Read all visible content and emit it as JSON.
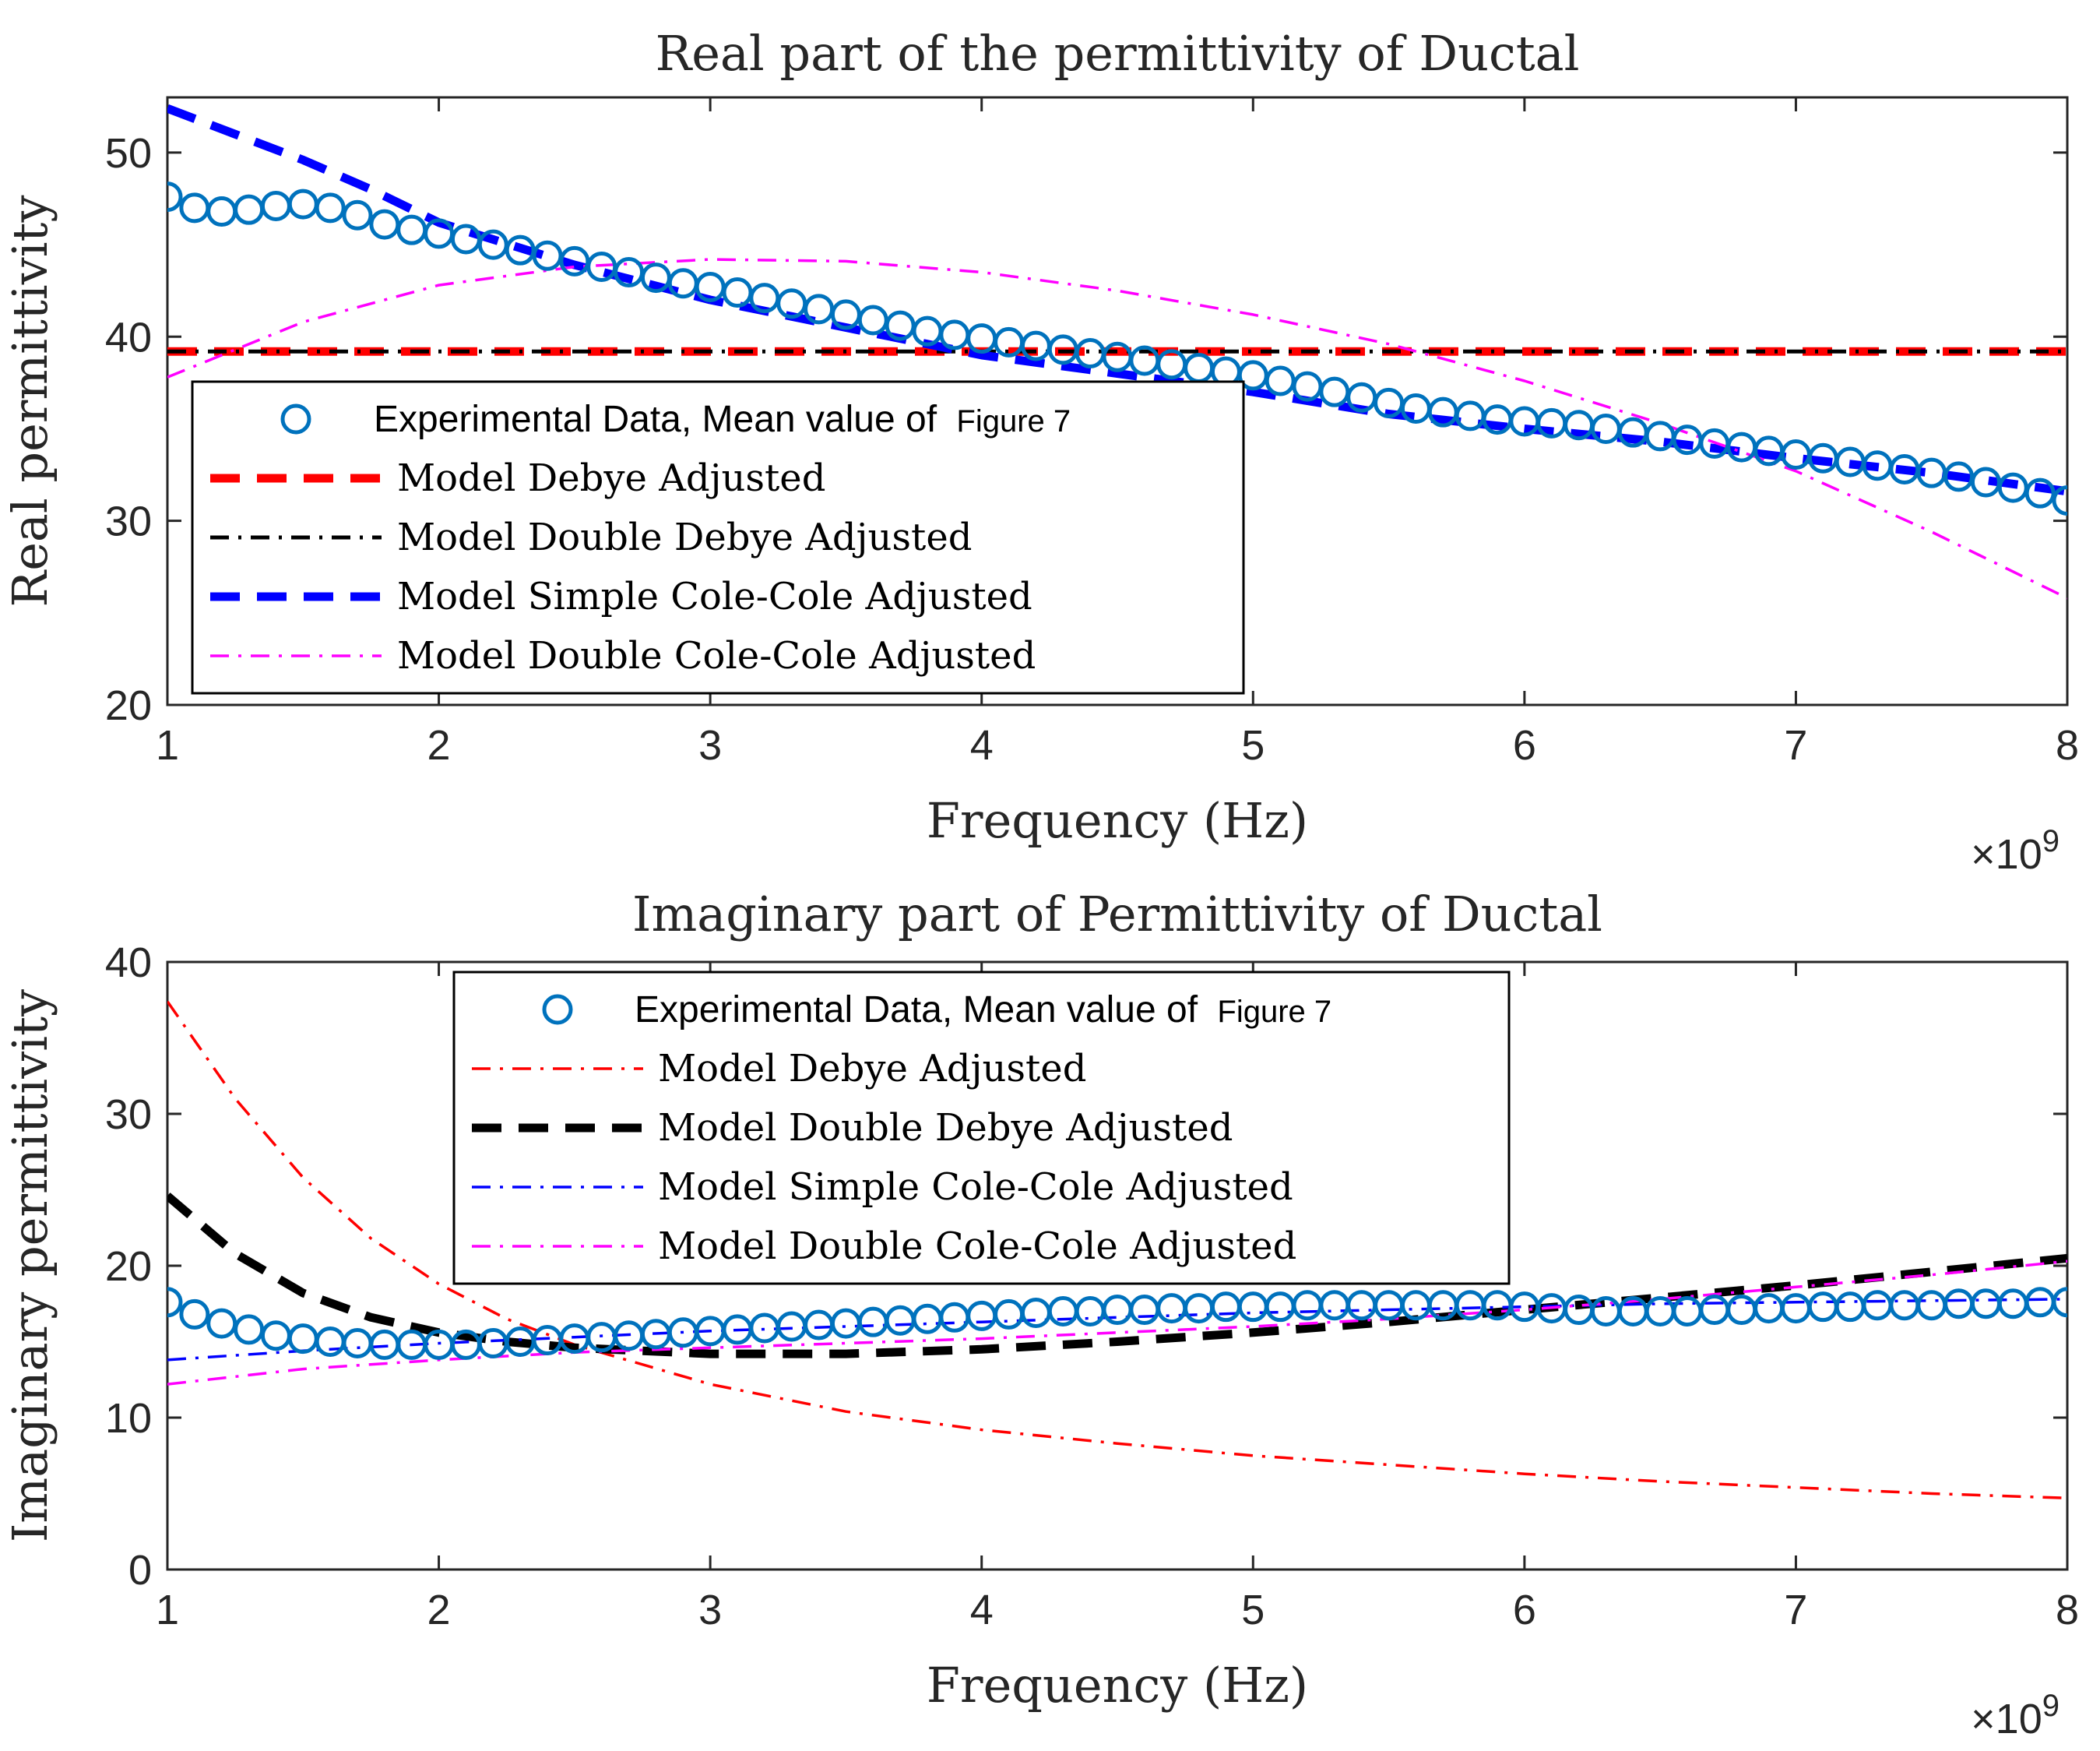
{
  "chart_data": [
    {
      "type": "line",
      "title": "Real part of the permittivity of Ductal",
      "xlabel": "Frequency (Hz)",
      "ylabel": "Real permittivity",
      "x_exponent_label": "×10",
      "x_exponent_power": "9",
      "xlim": [
        1,
        8
      ],
      "ylim": [
        20,
        53
      ],
      "xticks": [
        "1",
        "2",
        "3",
        "4",
        "5",
        "6",
        "7",
        "8"
      ],
      "yticks": [
        "20",
        "30",
        "40",
        "50"
      ],
      "legend_position": "lower-left",
      "series": [
        {
          "name": "Experimental Data, Mean value of",
          "name_suffix": "Figure 7",
          "style": "markers-circle",
          "color": "#0072BD",
          "x": [
            1.0,
            1.1,
            1.2,
            1.3,
            1.4,
            1.5,
            1.6,
            1.7,
            1.8,
            1.9,
            2.0,
            2.1,
            2.2,
            2.3,
            2.4,
            2.5,
            2.6,
            2.7,
            2.8,
            2.9,
            3.0,
            3.1,
            3.2,
            3.3,
            3.4,
            3.5,
            3.6,
            3.7,
            3.8,
            3.9,
            4.0,
            4.1,
            4.2,
            4.3,
            4.4,
            4.5,
            4.6,
            4.7,
            4.8,
            4.9,
            5.0,
            5.1,
            5.2,
            5.3,
            5.4,
            5.5,
            5.6,
            5.7,
            5.8,
            5.9,
            6.0,
            6.1,
            6.2,
            6.3,
            6.4,
            6.5,
            6.6,
            6.7,
            6.8,
            6.9,
            7.0,
            7.1,
            7.2,
            7.3,
            7.4,
            7.5,
            7.6,
            7.7,
            7.8,
            7.9,
            8.0
          ],
          "y": [
            47.6,
            47.0,
            46.8,
            46.9,
            47.1,
            47.2,
            47.0,
            46.6,
            46.1,
            45.8,
            45.6,
            45.3,
            45.0,
            44.7,
            44.4,
            44.1,
            43.8,
            43.5,
            43.2,
            42.9,
            42.7,
            42.4,
            42.1,
            41.8,
            41.5,
            41.2,
            40.9,
            40.6,
            40.3,
            40.1,
            39.9,
            39.7,
            39.5,
            39.3,
            39.1,
            38.9,
            38.7,
            38.5,
            38.3,
            38.1,
            37.9,
            37.6,
            37.3,
            37.0,
            36.7,
            36.4,
            36.1,
            35.9,
            35.7,
            35.5,
            35.4,
            35.3,
            35.2,
            35.0,
            34.8,
            34.6,
            34.4,
            34.2,
            34.0,
            33.8,
            33.6,
            33.4,
            33.2,
            33.0,
            32.8,
            32.6,
            32.4,
            32.1,
            31.8,
            31.5,
            31.1
          ]
        },
        {
          "name": "Model Debye Adjusted",
          "style": "dashed-thick",
          "color": "#FF0000",
          "x": [
            1,
            8
          ],
          "y": [
            39.2,
            39.2
          ]
        },
        {
          "name": "Model Double Debye Adjusted",
          "style": "dashdot",
          "color": "#000000",
          "x": [
            1,
            8
          ],
          "y": [
            39.2,
            39.2
          ]
        },
        {
          "name": "Model Simple Cole-Cole Adjusted",
          "style": "dashed-thick",
          "color": "#0000FF",
          "x": [
            1.0,
            1.25,
            1.5,
            1.75,
            2.0,
            2.5,
            3.0,
            3.5,
            4.0,
            4.5,
            5.0,
            5.5,
            6.0,
            6.5,
            7.0,
            7.5,
            8.0
          ],
          "y": [
            52.4,
            51.0,
            49.6,
            48.0,
            46.2,
            43.9,
            42.0,
            40.5,
            39.0,
            38.0,
            37.0,
            35.8,
            35.0,
            34.3,
            33.4,
            32.6,
            31.6
          ]
        },
        {
          "name": "Model Double Cole-Cole Adjusted",
          "style": "dashdot-thin",
          "color": "#FF00FF",
          "x": [
            1.0,
            1.5,
            2.0,
            2.5,
            3.0,
            3.5,
            4.0,
            4.5,
            5.0,
            5.5,
            6.0,
            6.5,
            7.0,
            7.5,
            8.0
          ],
          "y": [
            37.8,
            40.8,
            42.8,
            43.8,
            44.2,
            44.1,
            43.5,
            42.5,
            41.2,
            39.6,
            37.6,
            35.3,
            32.7,
            29.4,
            25.8
          ]
        }
      ]
    },
    {
      "type": "line",
      "title": "Imaginary part of Permittivity of Ductal",
      "xlabel": "Frequency (Hz)",
      "ylabel": "Imaginary permittivity",
      "x_exponent_label": "×10",
      "x_exponent_power": "9",
      "xlim": [
        1,
        8
      ],
      "ylim": [
        0,
        40
      ],
      "xticks": [
        "1",
        "2",
        "3",
        "4",
        "5",
        "6",
        "7",
        "8"
      ],
      "yticks": [
        "0",
        "10",
        "20",
        "30",
        "40"
      ],
      "legend_position": "upper-center",
      "series": [
        {
          "name": "Experimental Data, Mean value of",
          "name_suffix": "Figure 7",
          "style": "markers-circle",
          "color": "#0072BD",
          "x": [
            1.0,
            1.1,
            1.2,
            1.3,
            1.4,
            1.5,
            1.6,
            1.7,
            1.8,
            1.9,
            2.0,
            2.1,
            2.2,
            2.3,
            2.4,
            2.5,
            2.6,
            2.7,
            2.8,
            2.9,
            3.0,
            3.1,
            3.2,
            3.3,
            3.4,
            3.5,
            3.6,
            3.7,
            3.8,
            3.9,
            4.0,
            4.1,
            4.2,
            4.3,
            4.4,
            4.5,
            4.6,
            4.7,
            4.8,
            4.9,
            5.0,
            5.1,
            5.2,
            5.3,
            5.4,
            5.5,
            5.6,
            5.7,
            5.8,
            5.9,
            6.0,
            6.1,
            6.2,
            6.3,
            6.4,
            6.5,
            6.6,
            6.7,
            6.8,
            6.9,
            7.0,
            7.1,
            7.2,
            7.3,
            7.4,
            7.5,
            7.6,
            7.7,
            7.8,
            7.9,
            8.0
          ],
          "y": [
            17.6,
            16.8,
            16.2,
            15.8,
            15.4,
            15.2,
            15.0,
            14.9,
            14.8,
            14.8,
            14.8,
            14.8,
            14.9,
            15.0,
            15.1,
            15.2,
            15.3,
            15.4,
            15.5,
            15.6,
            15.7,
            15.8,
            15.9,
            16.0,
            16.1,
            16.2,
            16.3,
            16.4,
            16.5,
            16.6,
            16.7,
            16.8,
            16.9,
            17.0,
            17.0,
            17.1,
            17.1,
            17.2,
            17.2,
            17.3,
            17.3,
            17.3,
            17.4,
            17.4,
            17.4,
            17.4,
            17.4,
            17.4,
            17.4,
            17.4,
            17.3,
            17.2,
            17.1,
            17.0,
            17.0,
            17.0,
            17.0,
            17.1,
            17.1,
            17.2,
            17.2,
            17.3,
            17.3,
            17.4,
            17.4,
            17.4,
            17.5,
            17.5,
            17.5,
            17.6,
            17.6
          ]
        },
        {
          "name": "Model Debye Adjusted",
          "style": "dashdot-thin",
          "color": "#FF0000",
          "x": [
            1.0,
            1.25,
            1.5,
            1.75,
            2.0,
            2.25,
            2.5,
            3.0,
            3.5,
            4.0,
            4.5,
            5.0,
            5.5,
            6.0,
            6.5,
            7.0,
            7.5,
            8.0
          ],
          "y": [
            37.4,
            31.0,
            25.8,
            21.8,
            18.8,
            16.5,
            14.8,
            12.2,
            10.4,
            9.2,
            8.3,
            7.5,
            6.9,
            6.3,
            5.8,
            5.4,
            5.0,
            4.7
          ]
        },
        {
          "name": "Model Double Debye Adjusted",
          "style": "dashed-thick",
          "color": "#000000",
          "x": [
            1.0,
            1.25,
            1.5,
            1.75,
            2.0,
            2.25,
            2.5,
            3.0,
            3.5,
            4.0,
            4.5,
            5.0,
            5.5,
            6.0,
            6.5,
            7.0,
            7.5,
            8.0
          ],
          "y": [
            24.6,
            20.8,
            18.2,
            16.6,
            15.6,
            15.0,
            14.6,
            14.2,
            14.2,
            14.5,
            15.0,
            15.6,
            16.3,
            17.1,
            17.9,
            18.7,
            19.6,
            20.5
          ]
        },
        {
          "name": "Model Simple Cole-Cole Adjusted",
          "style": "dashdot-thin",
          "color": "#0000FF",
          "x": [
            1.0,
            1.5,
            2.0,
            2.5,
            3.0,
            3.5,
            4.0,
            4.5,
            5.0,
            5.5,
            6.0,
            6.5,
            7.0,
            7.5,
            8.0
          ],
          "y": [
            13.8,
            14.4,
            14.9,
            15.3,
            15.7,
            16.0,
            16.3,
            16.6,
            16.9,
            17.1,
            17.3,
            17.5,
            17.6,
            17.7,
            17.8
          ]
        },
        {
          "name": "Model Double Cole-Cole Adjusted",
          "style": "dashdot-thin",
          "color": "#FF00FF",
          "x": [
            1.0,
            1.5,
            2.0,
            2.5,
            3.0,
            3.5,
            4.0,
            4.5,
            5.0,
            5.5,
            6.0,
            6.5,
            7.0,
            7.5,
            8.0
          ],
          "y": [
            12.2,
            13.2,
            13.8,
            14.3,
            14.6,
            14.9,
            15.2,
            15.6,
            16.0,
            16.5,
            17.1,
            17.8,
            18.6,
            19.4,
            20.3
          ]
        }
      ]
    }
  ]
}
